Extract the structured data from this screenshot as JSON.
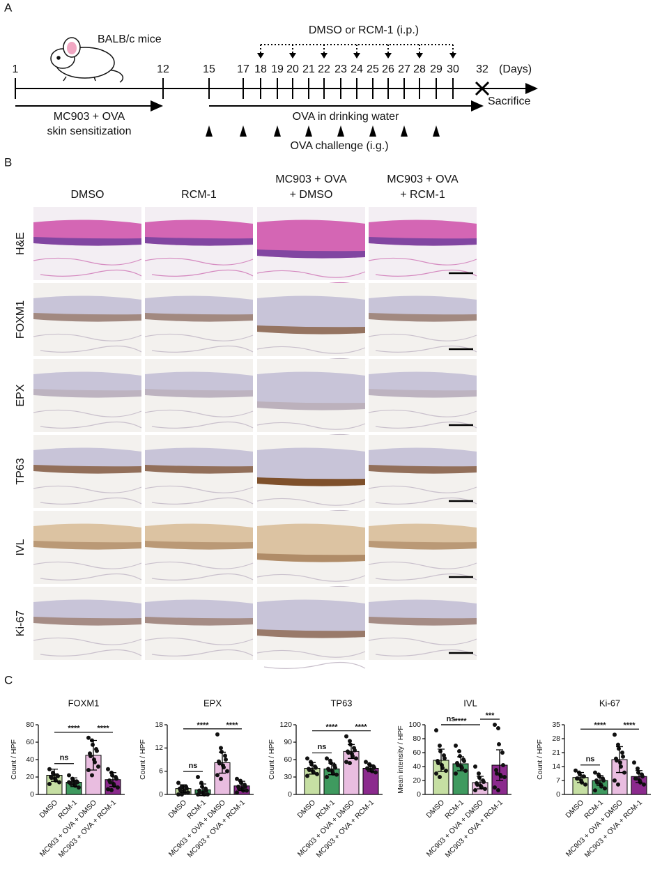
{
  "panels": [
    "A",
    "B",
    "C"
  ],
  "timeline": {
    "mouse_label": "BALB/c mice",
    "days": [
      1,
      12,
      15,
      17,
      18,
      19,
      20,
      21,
      22,
      23,
      24,
      25,
      26,
      27,
      28,
      29,
      30,
      32
    ],
    "units": "(Days)",
    "treatment_label": "DMSO or RCM-1 (i.p.)",
    "treatment_days": [
      18,
      20,
      22,
      24,
      26,
      28,
      30
    ],
    "sensitization_label": [
      "MC903 + OVA",
      "skin sensitization"
    ],
    "water_label": "OVA in drinking water",
    "sacrifice_label": "Sacrifice",
    "challenge_label": "OVA challenge (i.g.)",
    "challenge_days": [
      15,
      17,
      19,
      21,
      23,
      25,
      27,
      29
    ]
  },
  "micrographs": {
    "columns": [
      [
        "DMSO"
      ],
      [
        "RCM-1"
      ],
      [
        "MC903 + OVA",
        "+ DMSO"
      ],
      [
        "MC903 + OVA",
        "+ RCM-1"
      ]
    ],
    "rows": [
      "H&E",
      "FOXM1",
      "EPX",
      "TP63",
      "IVL",
      "Ki-67"
    ]
  },
  "chart_data": [
    {
      "type": "bar",
      "title": "FOXM1",
      "y_label": "Count / HPF",
      "categories": [
        "DMSO",
        "RCM-1",
        "MC903 + OVA + DMSO",
        "MC903 + OVA + RCM-1"
      ],
      "colors": [
        "#c6dfa3",
        "#3f9a5f",
        "#e9bde0",
        "#8b2a8d"
      ],
      "values": [
        22,
        14,
        45,
        17
      ],
      "errors": [
        7,
        5,
        17,
        8
      ],
      "points": [
        [
          29,
          25,
          23,
          22,
          21,
          20,
          19,
          18,
          16,
          14,
          12,
          24
        ],
        [
          22,
          18,
          16,
          15,
          14,
          13,
          12,
          11,
          10,
          8,
          14
        ],
        [
          65,
          62,
          57,
          52,
          50,
          47,
          44,
          40,
          37,
          32,
          28,
          22
        ],
        [
          29,
          25,
          22,
          20,
          18,
          16,
          14,
          12,
          10,
          8,
          6,
          5
        ]
      ],
      "ylim": [
        0,
        80
      ],
      "yticks": [
        0,
        20,
        40,
        60,
        80
      ],
      "comparisons": [
        {
          "groups": [
            0,
            1
          ],
          "label": "ns"
        },
        {
          "groups": [
            0,
            2
          ],
          "label": "****"
        },
        {
          "groups": [
            2,
            3
          ],
          "label": "****"
        }
      ]
    },
    {
      "type": "bar",
      "title": "EPX",
      "y_label": "Count / HPF",
      "categories": [
        "DMSO",
        "RCM-1",
        "MC903 + OVA + DMSO",
        "MC903 + OVA + RCM-1"
      ],
      "colors": [
        "#c6dfa3",
        "#3f9a5f",
        "#e9bde0",
        "#8b2a8d"
      ],
      "values": [
        1.5,
        1.2,
        8.2,
        2.2
      ],
      "errors": [
        1,
        1.5,
        2.7,
        1.2
      ],
      "points": [
        [
          3,
          2,
          2,
          2,
          1.5,
          1.5,
          1,
          1,
          0.5,
          0.5,
          0,
          0
        ],
        [
          4.5,
          3,
          2,
          1.5,
          1,
          1,
          0.5,
          0.5,
          0,
          0,
          0
        ],
        [
          15.5,
          12,
          11,
          10,
          9,
          8.5,
          8,
          7.5,
          7,
          6,
          5,
          4
        ],
        [
          4,
          3.5,
          3,
          2.5,
          2,
          2,
          1.5,
          1.5,
          1,
          1,
          0.5
        ]
      ],
      "ylim": [
        0,
        18
      ],
      "yticks": [
        0,
        6,
        12,
        18
      ],
      "comparisons": [
        {
          "groups": [
            0,
            1
          ],
          "label": "ns"
        },
        {
          "groups": [
            0,
            2
          ],
          "label": "****"
        },
        {
          "groups": [
            2,
            3
          ],
          "label": "****"
        }
      ]
    },
    {
      "type": "bar",
      "title": "TP63",
      "y_label": "Count / HPF",
      "categories": [
        "DMSO",
        "RCM-1",
        "MC903 + OVA + DMSO",
        "MC903 + OVA + RCM-1"
      ],
      "colors": [
        "#c6dfa3",
        "#3f9a5f",
        "#e9bde0",
        "#8b2a8d"
      ],
      "values": [
        45,
        44,
        74,
        45
      ],
      "errors": [
        10,
        10,
        12,
        6
      ],
      "points": [
        [
          62,
          56,
          52,
          48,
          46,
          44,
          42,
          40,
          38,
          35,
          32
        ],
        [
          62,
          58,
          54,
          50,
          46,
          44,
          42,
          40,
          36,
          34,
          30
        ],
        [
          100,
          92,
          86,
          80,
          76,
          74,
          72,
          70,
          66,
          62,
          56,
          54
        ],
        [
          56,
          52,
          50,
          48,
          46,
          45,
          44,
          42,
          40,
          38
        ]
      ],
      "ylim": [
        0,
        120
      ],
      "yticks": [
        0,
        30,
        60,
        90,
        120
      ],
      "comparisons": [
        {
          "groups": [
            0,
            1
          ],
          "label": "ns"
        },
        {
          "groups": [
            0,
            2
          ],
          "label": "****"
        },
        {
          "groups": [
            2,
            3
          ],
          "label": "****"
        }
      ]
    },
    {
      "type": "bar",
      "title": "IVL",
      "y_label": "Mean intensity / HPF",
      "categories": [
        "DMSO",
        "RCM-1",
        "MC903 + OVA + DMSO",
        "MC903 + OVA + RCM-1"
      ],
      "colors": [
        "#c6dfa3",
        "#3f9a5f",
        "#e9bde0",
        "#8b2a8d"
      ],
      "values": [
        49,
        44,
        17,
        42
      ],
      "errors": [
        16,
        10,
        9,
        22
      ],
      "points": [
        [
          92,
          70,
          62,
          56,
          52,
          48,
          45,
          42,
          38,
          34,
          30,
          25
        ],
        [
          70,
          62,
          55,
          50,
          48,
          45,
          42,
          40,
          38,
          34,
          30
        ],
        [
          40,
          30,
          24,
          20,
          18,
          16,
          14,
          12,
          10,
          8,
          6
        ],
        [
          100,
          95,
          72,
          60,
          42,
          35,
          30,
          28,
          26,
          25,
          10,
          6
        ]
      ],
      "ylim": [
        0,
        100
      ],
      "yticks": [
        0,
        20,
        40,
        60,
        80,
        100
      ],
      "comparisons": [
        {
          "groups": [
            0,
            1
          ],
          "label": "ns"
        },
        {
          "groups": [
            0,
            2
          ],
          "label": "****"
        },
        {
          "groups": [
            2,
            3
          ],
          "label": "***"
        }
      ]
    },
    {
      "type": "bar",
      "title": "Ki-67",
      "y_label": "Count / HPF",
      "categories": [
        "DMSO",
        "RCM-1",
        "MC903 + OVA + DMSO",
        "MC903 + OVA + RCM-1"
      ],
      "colors": [
        "#c6dfa3",
        "#3f9a5f",
        "#e9bde0",
        "#8b2a8d"
      ],
      "values": [
        8.5,
        7,
        17.5,
        9
      ],
      "errors": [
        2.5,
        2.5,
        6.5,
        3
      ],
      "points": [
        [
          12,
          11,
          10,
          9,
          9,
          8,
          8,
          7,
          6,
          5
        ],
        [
          11,
          10,
          9,
          8,
          7,
          7,
          6,
          5,
          4,
          3,
          2
        ],
        [
          30,
          25,
          23,
          21,
          19,
          18,
          17,
          16,
          14,
          11,
          7,
          5
        ],
        [
          16,
          13,
          11,
          10,
          9,
          8,
          8,
          7,
          6,
          5
        ]
      ],
      "ylim": [
        0,
        35
      ],
      "yticks": [
        0,
        7,
        14,
        21,
        28,
        35
      ],
      "comparisons": [
        {
          "groups": [
            0,
            1
          ],
          "label": "ns"
        },
        {
          "groups": [
            0,
            2
          ],
          "label": "****"
        },
        {
          "groups": [
            2,
            3
          ],
          "label": "****"
        }
      ]
    }
  ]
}
